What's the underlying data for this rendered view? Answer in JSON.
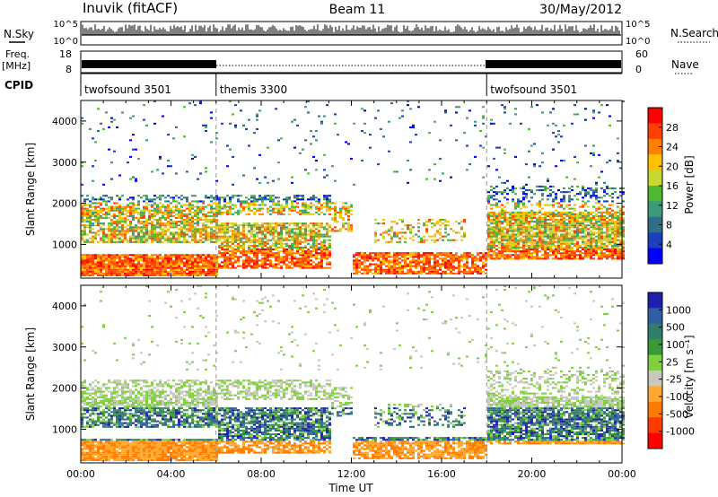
{
  "header": {
    "station": "Inuvik (fitACF)",
    "beam": "Beam 11",
    "date": "30/May/2012"
  },
  "labels": {
    "nsky": "N.Sky",
    "freq": "Freq.",
    "mhz": "[MHz]",
    "cpid": "CPID",
    "nsearch": "N.Search",
    "nave": "Nave",
    "nsky_top": "10^5",
    "nsky_bottom": "10^0",
    "ns_top": "10^5",
    "ns_bottom": "10^0",
    "freq_top": "18",
    "freq_bottom": "8",
    "nave_top": "60",
    "nave_bottom": "0"
  },
  "cpid_segments": [
    {
      "label": "twofsound 3501",
      "start_h": 0,
      "end_h": 6
    },
    {
      "label": "themis 3300",
      "start_h": 6,
      "end_h": 18
    },
    {
      "label": "twofsound 3501",
      "start_h": 18,
      "end_h": 24
    }
  ],
  "chart_data": [
    {
      "type": "heatmap",
      "ylabel": "Slant Range [km]",
      "xlim_h": [
        0,
        24
      ],
      "ylim": [
        180,
        4500
      ],
      "yticks": [
        1000,
        2000,
        3000,
        4000
      ],
      "colorbar_title": "Power [dB]",
      "colorbar_ticks": [
        "28",
        "24",
        "20",
        "16",
        "12",
        "8",
        "4"
      ],
      "colorbar_colors": [
        "#ff0000",
        "#ff4000",
        "#ff8000",
        "#ffc000",
        "#c8d830",
        "#50b830",
        "#3a9a7a",
        "#2f6d8a",
        "#1b3fbf",
        "#0000ff"
      ]
    },
    {
      "type": "heatmap",
      "ylabel": "Slant Range [km]",
      "xlabel": "Time UT",
      "xlim_h": [
        0,
        24
      ],
      "ylim": [
        180,
        4500
      ],
      "yticks": [
        1000,
        2000,
        3000,
        4000
      ],
      "xtick_labels": [
        "00:00",
        "04:00",
        "08:00",
        "12:00",
        "16:00",
        "20:00",
        "00:00"
      ],
      "colorbar_title": "Velocity [m s⁻¹]",
      "colorbar_ticks": [
        "1000",
        "500",
        "100",
        "25",
        "-25",
        "-100",
        "-500",
        "-1000"
      ],
      "colorbar_colors": [
        "#2020b0",
        "#2f5fa0",
        "#2f7f6f",
        "#3a9a3a",
        "#7fcf3f",
        "#c8c8c0",
        "#ffa830",
        "#ff7a00",
        "#ff3a00",
        "#ff0000"
      ]
    }
  ]
}
